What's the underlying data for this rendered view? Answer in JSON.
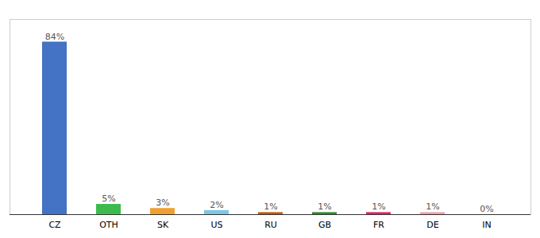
{
  "chart_data": {
    "type": "bar",
    "categories": [
      "CZ",
      "OTH",
      "SK",
      "US",
      "RU",
      "GB",
      "FR",
      "DE",
      "IN"
    ],
    "values": [
      84,
      5,
      3,
      2,
      1,
      1,
      1,
      1,
      0
    ],
    "value_labels": [
      "84%",
      "5%",
      "3%",
      "2%",
      "1%",
      "1%",
      "1%",
      "1%",
      "0%"
    ],
    "colors": [
      "#4472c4",
      "#3dba4e",
      "#f0a030",
      "#7ec8e3",
      "#c05a10",
      "#2d8a2d",
      "#e0206a",
      "#f0a0b0",
      "#aaaaaa"
    ],
    "ylim": [
      0,
      95
    ],
    "data_labels": true,
    "tick_labels": "x",
    "grid": false
  }
}
